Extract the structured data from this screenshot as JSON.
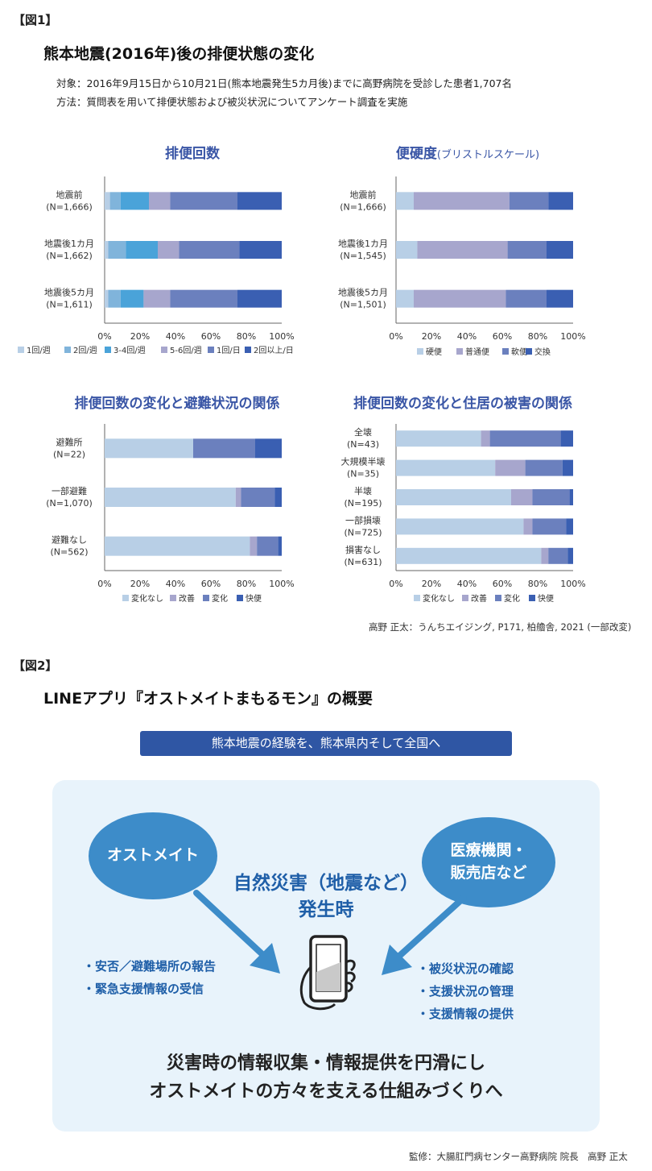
{
  "fig1": {
    "tag": "【図1】",
    "title": "熊本地震(2016年)後の排便状態の変化",
    "subject": "対象：2016年9月15日から10月21日(熊本地震発生5カ月後)までに高野病院を受診した患者1,707名",
    "method": "方法：質問表を用いて排便状態および被災状況についてアンケート調査を実施",
    "source": "高野 正太：うんちエイジング, P171, 柏艪舎, 2021 (一部改変)"
  },
  "fig2": {
    "tag": "【図2】",
    "title": "LINEアプリ『オストメイトまもるモン』の概要",
    "banner": "熊本地震の経験を、熊本県内そして全国へ",
    "left_bubble": "オストメイト",
    "right_bubble_line1": "医療機関・",
    "right_bubble_line2": "販売店など",
    "center_line1": "自然災害（地震など）",
    "center_line2": "発生時",
    "left_items": [
      "・安否／避難場所の報告",
      "・緊急支援情報の受信"
    ],
    "right_items": [
      "・被災状況の確認",
      "・支援状況の管理",
      "・支援情報の提供"
    ],
    "bottom_line1": "災害時の情報収集・情報提供を円滑にし",
    "bottom_line2": "オストメイトの方々を支える仕組みづくりへ",
    "supervisor": "監修：大腸肛門病センター高野病院 院長　高野 正太",
    "icons": {
      "phone": "smartphone-hand-icon",
      "arrow_left": "arrow-down-right-icon",
      "arrow_right": "arrow-down-left-icon"
    }
  },
  "colors": {
    "c1": "#b8cfe6",
    "c2": "#80b4db",
    "c3": "#4aa3d9",
    "c4": "#a7a6cd",
    "c5": "#6b80be",
    "c6": "#3a5fb2",
    "bubble": "#3d8cc9",
    "banner": "#2f56a4",
    "panel": "#e8f3fb",
    "accent_text": "#1f5fa8"
  },
  "chart_data": [
    {
      "id": "c1",
      "type": "bar",
      "orientation": "horizontal",
      "stacked": true,
      "title": "排便回数",
      "title_sub": "",
      "categories": [
        [
          "地震前",
          "(N=1,666)"
        ],
        [
          "地震後1カ月",
          "(N=1,662)"
        ],
        [
          "地震後5カ月",
          "(N=1,611)"
        ]
      ],
      "xticks": [
        "0%",
        "20%",
        "40%",
        "60%",
        "80%",
        "100%"
      ],
      "xlim": [
        0,
        100
      ],
      "series": [
        {
          "name": "1回/週",
          "color": "#b8cfe6",
          "values": [
            3,
            2,
            2
          ]
        },
        {
          "name": "2回/週",
          "color": "#80b4db",
          "values": [
            6,
            10,
            7
          ]
        },
        {
          "name": "3-4回/週",
          "color": "#4aa3d9",
          "values": [
            16,
            18,
            13
          ]
        },
        {
          "name": "5-6回/週",
          "color": "#a7a6cd",
          "values": [
            12,
            12,
            15
          ]
        },
        {
          "name": "1回/日",
          "color": "#6b80be",
          "values": [
            38,
            34,
            38
          ]
        },
        {
          "name": "2回以上/日",
          "color": "#3a5fb2",
          "values": [
            25,
            24,
            25
          ]
        }
      ],
      "legend": "bottom"
    },
    {
      "id": "c2",
      "type": "bar",
      "orientation": "horizontal",
      "stacked": true,
      "title": "便硬度",
      "title_sub": "(ブリストルスケール)",
      "categories": [
        [
          "地震前",
          "(N=1,666)"
        ],
        [
          "地震後1カ月",
          "(N=1,545)"
        ],
        [
          "地震後5カ月",
          "(N=1,501)"
        ]
      ],
      "xticks": [
        "0%",
        "20%",
        "40%",
        "60%",
        "80%",
        "100%"
      ],
      "xlim": [
        0,
        100
      ],
      "series": [
        {
          "name": "硬便",
          "color": "#b8cfe6",
          "values": [
            10,
            12,
            10
          ]
        },
        {
          "name": "普通便",
          "color": "#a7a6cd",
          "values": [
            54,
            51,
            52
          ]
        },
        {
          "name": "軟便",
          "color": "#6b80be",
          "values": [
            22,
            22,
            23
          ]
        },
        {
          "name": "交換",
          "color": "#3a5fb2",
          "values": [
            14,
            15,
            15
          ]
        }
      ],
      "legend": "bottom"
    },
    {
      "id": "c3",
      "type": "bar",
      "orientation": "horizontal",
      "stacked": true,
      "title": "排便回数の変化と避難状況の関係",
      "title_sub": "",
      "categories": [
        [
          "避難所",
          "(N=22)"
        ],
        [
          "一部避難",
          "(N=1,070)"
        ],
        [
          "避難なし",
          "(N=562)"
        ]
      ],
      "xticks": [
        "0%",
        "20%",
        "40%",
        "60%",
        "80%",
        "100%"
      ],
      "xlim": [
        0,
        100
      ],
      "series": [
        {
          "name": "変化なし",
          "color": "#b8cfe6",
          "values": [
            50,
            74,
            82
          ]
        },
        {
          "name": "改善",
          "color": "#a7a6cd",
          "values": [
            0,
            3,
            4
          ]
        },
        {
          "name": "変化",
          "color": "#6b80be",
          "values": [
            35,
            19,
            12
          ]
        },
        {
          "name": "快便",
          "color": "#3a5fb2",
          "values": [
            15,
            4,
            2
          ]
        }
      ],
      "legend": "bottom"
    },
    {
      "id": "c4",
      "type": "bar",
      "orientation": "horizontal",
      "stacked": true,
      "title": "排便回数の変化と住居の被害の関係",
      "title_sub": "",
      "categories": [
        [
          "全壊",
          "(N=43)"
        ],
        [
          "大規模半壊",
          "(N=35)"
        ],
        [
          "半壊",
          "(N=195)"
        ],
        [
          "一部損壊",
          "(N=725)"
        ],
        [
          "損害なし",
          "(N=631)"
        ]
      ],
      "xticks": [
        "0%",
        "20%",
        "40%",
        "60%",
        "80%",
        "100%"
      ],
      "xlim": [
        0,
        100
      ],
      "series": [
        {
          "name": "変化なし",
          "color": "#b8cfe6",
          "values": [
            48,
            56,
            65,
            72,
            82
          ]
        },
        {
          "name": "改善",
          "color": "#a7a6cd",
          "values": [
            5,
            17,
            12,
            5,
            4
          ]
        },
        {
          "name": "変化",
          "color": "#6b80be",
          "values": [
            40,
            21,
            21,
            19,
            11
          ]
        },
        {
          "name": "快便",
          "color": "#3a5fb2",
          "values": [
            7,
            6,
            2,
            4,
            3
          ]
        }
      ],
      "legend": "bottom"
    }
  ]
}
